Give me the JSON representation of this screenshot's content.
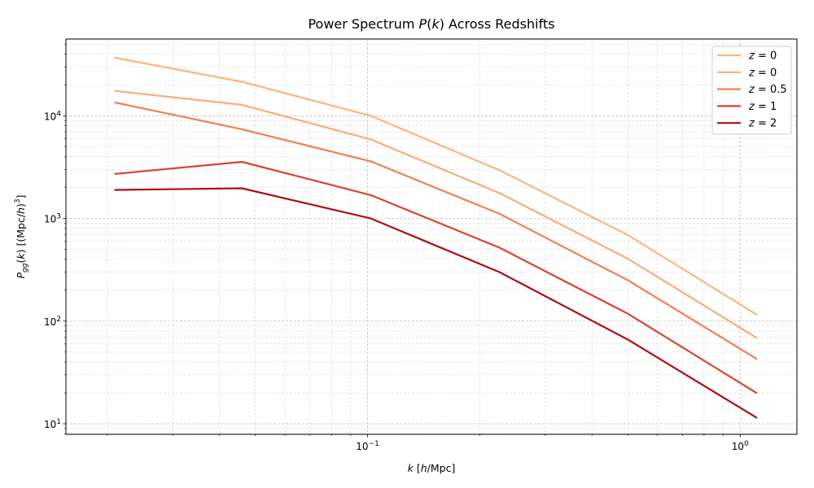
{
  "chart_data": {
    "type": "line",
    "title": "Power Spectrum P(k) Across Redshifts",
    "xlabel": "k [h/Mpc]",
    "ylabel": "P_gg(k) [(Mpc/h)^3]",
    "xscale": "log",
    "yscale": "log",
    "xlim": [
      0.0155,
      1.42
    ],
    "ylim": [
      7.9,
      56000
    ],
    "grid": true,
    "legend_position": "top-right",
    "x": [
      0.021,
      0.046,
      0.102,
      0.226,
      0.5,
      1.106
    ],
    "x_ticks": [
      {
        "value": 0.1,
        "base": "10",
        "exp": "−1"
      },
      {
        "value": 1.0,
        "base": "10",
        "exp": "0"
      }
    ],
    "y_ticks": [
      {
        "value": 10,
        "base": "10",
        "exp": "1"
      },
      {
        "value": 100,
        "base": "10",
        "exp": "2"
      },
      {
        "value": 1000,
        "base": "10",
        "exp": "3"
      },
      {
        "value": 10000,
        "base": "10",
        "exp": "4"
      }
    ],
    "series": [
      {
        "name": "z = 0",
        "color": "#fdb57c",
        "values": [
          36800,
          21500,
          10000,
          2950,
          690,
          116
        ]
      },
      {
        "name": "z = 0",
        "color": "#fcab77",
        "values": [
          17500,
          12800,
          5900,
          1770,
          405,
          69
        ]
      },
      {
        "name": "z = 0.5",
        "color": "#f08055",
        "values": [
          13500,
          7400,
          3600,
          1110,
          250,
          43
        ]
      },
      {
        "name": "z = 1",
        "color": "#d9442d",
        "values": [
          2720,
          3560,
          1690,
          520,
          118,
          20
        ]
      },
      {
        "name": "z = 2",
        "color": "#a91016",
        "values": [
          1900,
          1970,
          1000,
          300,
          66,
          11.5
        ]
      }
    ]
  }
}
